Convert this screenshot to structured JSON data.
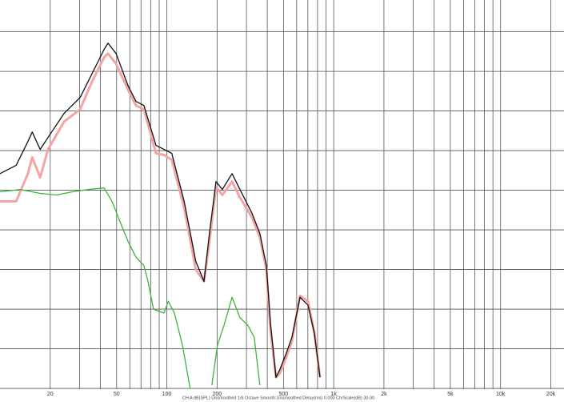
{
  "chart_data": {
    "type": "line",
    "footer": "CH A dB(SPL) Unsmoothed 1/6 Octave Smooth:Unsmoothed Delay(ms) 0.000 Ch/Scale(dB) 30.00",
    "log_x": true,
    "grid": true,
    "grid_color": "#555",
    "xlim": [
      10,
      24000
    ],
    "xticks": [
      20,
      50,
      100,
      200,
      500,
      {
        "value": 1000,
        "label": "1k"
      },
      {
        "value": 2000,
        "label": "2k"
      },
      {
        "value": 5000,
        "label": "5k"
      },
      {
        "value": 10000,
        "label": "10k"
      },
      {
        "value": 20000,
        "label": "20k"
      }
    ],
    "xgrid": [
      20,
      30,
      40,
      50,
      60,
      70,
      80,
      90,
      100,
      200,
      300,
      400,
      500,
      600,
      700,
      800,
      900,
      1000,
      2000,
      3000,
      4000,
      5000,
      6000,
      7000,
      8000,
      9000,
      10000,
      20000
    ],
    "ylim": [
      -1,
      98
    ],
    "yticks": [
      0,
      10,
      20,
      30,
      40,
      50,
      60,
      70,
      80,
      90
    ],
    "series": [
      {
        "color": "#f4a4a4",
        "x": [
          10,
          12.5,
          14.7,
          15.6,
          17.4,
          19.4,
          24.2,
          30.2,
          35.6,
          42.0,
          44.4,
          49.6,
          58.5,
          65.3,
          72.9,
          86.1,
          96.1,
          107,
          127,
          149,
          167,
          180,
          197,
          215,
          246,
          274,
          324,
          361,
          395,
          417,
          451,
          476,
          520,
          562,
          628,
          701,
          766,
          828
        ],
        "values": [
          47.2,
          47.2,
          54.2,
          58.3,
          53.2,
          60.3,
          67.3,
          70.4,
          77.4,
          83.5,
          84.5,
          81.9,
          75.4,
          71.4,
          70.4,
          59.3,
          58.9,
          57.7,
          45.6,
          30.0,
          27.0,
          37.1,
          50.8,
          48.8,
          52.2,
          48.2,
          43.1,
          38.1,
          30.0,
          14.9,
          2.8,
          3.8,
          7.9,
          11.9,
          23.4,
          22.0,
          13.9,
          2.8
        ]
      },
      {
        "color": "#111111",
        "x": [
          10,
          12.5,
          14.7,
          15.6,
          17.4,
          19.4,
          24.2,
          30.2,
          35.6,
          42.0,
          44.4,
          49.6,
          58.5,
          65.3,
          72.9,
          86.1,
          96.1,
          107,
          127,
          149,
          167,
          180,
          197,
          215,
          246,
          274,
          324,
          361,
          395,
          417,
          451,
          476,
          520,
          562,
          628,
          701,
          766,
          828
        ],
        "values": [
          54.2,
          56.3,
          62.3,
          64.7,
          60.3,
          63.3,
          69.4,
          73.4,
          79.4,
          85.5,
          87.1,
          84.5,
          76.4,
          72.4,
          71.4,
          61.3,
          60.3,
          59.3,
          47.2,
          32.1,
          27.0,
          39.1,
          52.2,
          50.2,
          54.2,
          50.2,
          44.2,
          39.1,
          31.0,
          16.9,
          2.8,
          4.8,
          8.9,
          12.9,
          23.0,
          21.0,
          13.9,
          2.8
        ]
      },
      {
        "color": "#3cb43c",
        "x": [
          10,
          13.2,
          17.4,
          21.7,
          27.0,
          33.7,
          42.0,
          46.9,
          52.4,
          58.5,
          65.3,
          72.9,
          77.1,
          83.2,
          96.1,
          102,
          111,
          124,
          138,
          null,
          186,
          201,
          220,
          246,
          274,
          306,
          334,
          361
        ],
        "values": [
          49.6,
          50.2,
          49.2,
          48.8,
          49.6,
          50.2,
          50.6,
          47.2,
          42.1,
          37.1,
          33.1,
          31.0,
          27.0,
          20.0,
          19.0,
          22.0,
          19.0,
          10.9,
          0,
          null,
          0.8,
          10.9,
          15.9,
          23.0,
          17.9,
          15.9,
          12.9,
          0.8
        ]
      }
    ]
  }
}
